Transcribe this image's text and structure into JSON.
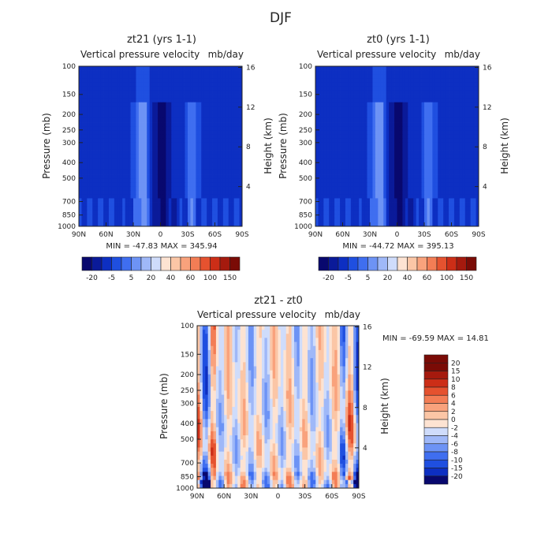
{
  "figure_title": "DJF",
  "colors": {
    "neg": [
      "#08086e",
      "#0a1a99",
      "#0d2fc2",
      "#1f4fe0",
      "#3f6ef0",
      "#6d93f5",
      "#9fb8f8",
      "#cfdcfb"
    ],
    "pos": [
      "#fde3d2",
      "#fbc6a6",
      "#f9a27c",
      "#f37d55",
      "#e5522f",
      "#cc2e17",
      "#a51a0e",
      "#7a0b06"
    ]
  },
  "chart_data": [
    {
      "type": "heatmap",
      "title": "zt21 (yrs 1-1)",
      "subtitle_left": "Vertical pressure velocity",
      "subtitle_right": "mb/day",
      "ylabel": "Pressure (mb)",
      "ylabel_right": "Height (km)",
      "x_ticks": [
        "90N",
        "60N",
        "30N",
        "0",
        "30S",
        "60S",
        "90S"
      ],
      "y_ticks": [
        "100",
        "150",
        "200",
        "250",
        "300",
        "400",
        "500",
        "700",
        "850",
        "1000"
      ],
      "y_ticks_right": [
        "16",
        "12",
        "8",
        "4"
      ],
      "stats": "MIN = -47.83   MAX = 345.94",
      "min": -47.83,
      "max": 345.94,
      "colorbar": {
        "labels": [
          "-20",
          "-5",
          "5",
          "20",
          "40",
          "60",
          "100",
          "150"
        ],
        "levels": [
          -30,
          -20,
          -10,
          -5,
          0,
          5,
          10,
          20,
          30,
          40,
          50,
          60,
          80,
          100,
          120,
          150
        ]
      }
    },
    {
      "type": "heatmap",
      "title": "zt0 (yrs 1-1)",
      "subtitle_left": "Vertical pressure velocity",
      "subtitle_right": "mb/day",
      "ylabel": "Pressure (mb)",
      "ylabel_right": "Height (km)",
      "x_ticks": [
        "90N",
        "60N",
        "30N",
        "0",
        "30S",
        "60S",
        "90S"
      ],
      "y_ticks": [
        "100",
        "150",
        "200",
        "250",
        "300",
        "400",
        "500",
        "700",
        "850",
        "1000"
      ],
      "y_ticks_right": [
        "16",
        "12",
        "8",
        "4"
      ],
      "stats": "MIN = -44.72   MAX = 395.13",
      "min": -44.72,
      "max": 395.13,
      "colorbar": {
        "labels": [
          "-20",
          "-5",
          "5",
          "20",
          "40",
          "60",
          "100",
          "150"
        ],
        "levels": [
          -30,
          -20,
          -10,
          -5,
          0,
          5,
          10,
          20,
          30,
          40,
          50,
          60,
          80,
          100,
          120,
          150
        ]
      }
    },
    {
      "type": "heatmap",
      "title": "zt21 - zt0",
      "subtitle_left": "Vertical pressure velocity",
      "subtitle_right": "mb/day",
      "ylabel": "Pressure (mb)",
      "ylabel_right": "Height (km)",
      "x_ticks": [
        "90N",
        "60N",
        "30N",
        "0",
        "30S",
        "60S",
        "90S"
      ],
      "y_ticks": [
        "100",
        "150",
        "200",
        "250",
        "300",
        "400",
        "500",
        "700",
        "850",
        "1000"
      ],
      "y_ticks_right": [
        "16",
        "12",
        "8",
        "4"
      ],
      "stats": "MIN = -69.59   MAX =  14.81",
      "min": -69.59,
      "max": 14.81,
      "colorbar": {
        "labels": [
          "20",
          "15",
          "10",
          "8",
          "6",
          "4",
          "2",
          "0",
          "-2",
          "-4",
          "-6",
          "-8",
          "-10",
          "-15",
          "-20"
        ],
        "levels": [
          20,
          15,
          10,
          8,
          6,
          4,
          2,
          0,
          -2,
          -4,
          -6,
          -8,
          -10,
          -15,
          -20
        ]
      }
    }
  ]
}
